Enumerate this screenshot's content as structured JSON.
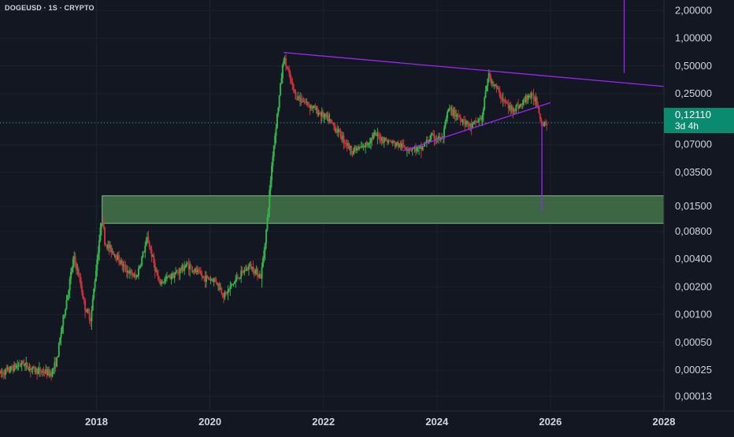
{
  "symbol": "DOGEUSD · 1S · CRYPTO",
  "colors": {
    "background": "#131722",
    "grid": "#1e222d",
    "axis_text": "#d1d4dc",
    "up": "#26a69a",
    "down": "#ef5350",
    "candle_up": "#33b24a",
    "candle_down": "#c8323a",
    "trendline": "#9c27f0",
    "zone_fill": "#3e6b45",
    "zone_border": "#7fb98a",
    "price_tag": "#0a8a6e"
  },
  "last_price": {
    "value": "0,12110",
    "countdown": "3d 4h"
  },
  "chart_data": {
    "type": "candlestick",
    "title": "DOGEUSD · 1S · CRYPTO",
    "y_scale": "log",
    "x_ticks": [
      "2018",
      "2020",
      "2022",
      "2024",
      "2026",
      "2028"
    ],
    "x_tick_values": [
      2018,
      2020,
      2022,
      2024,
      2026,
      2028
    ],
    "y_ticks": [
      "2,00000",
      "1,00000",
      "0,50000",
      "0,25000",
      "0,12110",
      "0,07000",
      "0,03500",
      "0,01500",
      "0,00800",
      "0,00400",
      "0,00200",
      "0,00100",
      "0,00050",
      "0,00025",
      "0,00013"
    ],
    "y_tick_values": [
      2.0,
      1.0,
      0.5,
      0.25,
      0.1211,
      0.07,
      0.035,
      0.015,
      0.008,
      0.004,
      0.002,
      0.001,
      0.0005,
      0.00025,
      0.00013
    ],
    "x_range": [
      2016.3,
      2028.0
    ],
    "y_range": [
      9e-05,
      2.6
    ],
    "grid": true,
    "price_path": [
      [
        2016.3,
        0.00023
      ],
      [
        2016.5,
        0.00026
      ],
      [
        2016.7,
        0.0003
      ],
      [
        2016.9,
        0.00025
      ],
      [
        2017.1,
        0.00024
      ],
      [
        2017.2,
        0.00023
      ],
      [
        2017.3,
        0.00032
      ],
      [
        2017.4,
        0.0008
      ],
      [
        2017.5,
        0.0018
      ],
      [
        2017.6,
        0.0042
      ],
      [
        2017.7,
        0.0025
      ],
      [
        2017.8,
        0.0012
      ],
      [
        2017.9,
        0.0009
      ],
      [
        2018.0,
        0.0035
      ],
      [
        2018.1,
        0.012
      ],
      [
        2018.15,
        0.006
      ],
      [
        2018.3,
        0.0048
      ],
      [
        2018.5,
        0.0032
      ],
      [
        2018.7,
        0.0025
      ],
      [
        2018.9,
        0.0068
      ],
      [
        2019.1,
        0.0022
      ],
      [
        2019.4,
        0.0028
      ],
      [
        2019.6,
        0.0035
      ],
      [
        2019.9,
        0.0025
      ],
      [
        2020.1,
        0.0024
      ],
      [
        2020.25,
        0.0016
      ],
      [
        2020.5,
        0.0026
      ],
      [
        2020.7,
        0.0034
      ],
      [
        2020.9,
        0.0026
      ],
      [
        2021.0,
        0.009
      ],
      [
        2021.1,
        0.05
      ],
      [
        2021.3,
        0.62
      ],
      [
        2021.5,
        0.24
      ],
      [
        2021.7,
        0.2
      ],
      [
        2021.9,
        0.16
      ],
      [
        2022.1,
        0.13
      ],
      [
        2022.3,
        0.09
      ],
      [
        2022.5,
        0.06
      ],
      [
        2022.7,
        0.065
      ],
      [
        2022.9,
        0.09
      ],
      [
        2023.1,
        0.078
      ],
      [
        2023.3,
        0.07
      ],
      [
        2023.5,
        0.065
      ],
      [
        2023.7,
        0.062
      ],
      [
        2023.9,
        0.085
      ],
      [
        2024.1,
        0.08
      ],
      [
        2024.2,
        0.17
      ],
      [
        2024.4,
        0.14
      ],
      [
        2024.6,
        0.11
      ],
      [
        2024.8,
        0.14
      ],
      [
        2024.9,
        0.4
      ],
      [
        2025.0,
        0.32
      ],
      [
        2025.2,
        0.2
      ],
      [
        2025.3,
        0.17
      ],
      [
        2025.5,
        0.19
      ],
      [
        2025.6,
        0.24
      ],
      [
        2025.75,
        0.22
      ],
      [
        2025.85,
        0.12
      ],
      [
        2025.95,
        0.1211
      ]
    ],
    "annotations": [
      {
        "kind": "trendline",
        "from": [
          2021.3,
          0.7
        ],
        "to": [
          2028.0,
          0.3
        ]
      },
      {
        "kind": "trendline",
        "from": [
          2023.4,
          0.06
        ],
        "to": [
          2026.0,
          0.2
        ]
      },
      {
        "kind": "vertical-line",
        "x": 2027.3,
        "from": 0.42,
        "to": 2.6
      },
      {
        "kind": "vertical-line",
        "x": 2025.85,
        "from": 0.12,
        "to": 0.0135
      },
      {
        "kind": "zone",
        "x_start": 2018.1,
        "x_end": 2028.0,
        "y_low": 0.0098,
        "y_high": 0.0195
      }
    ]
  }
}
